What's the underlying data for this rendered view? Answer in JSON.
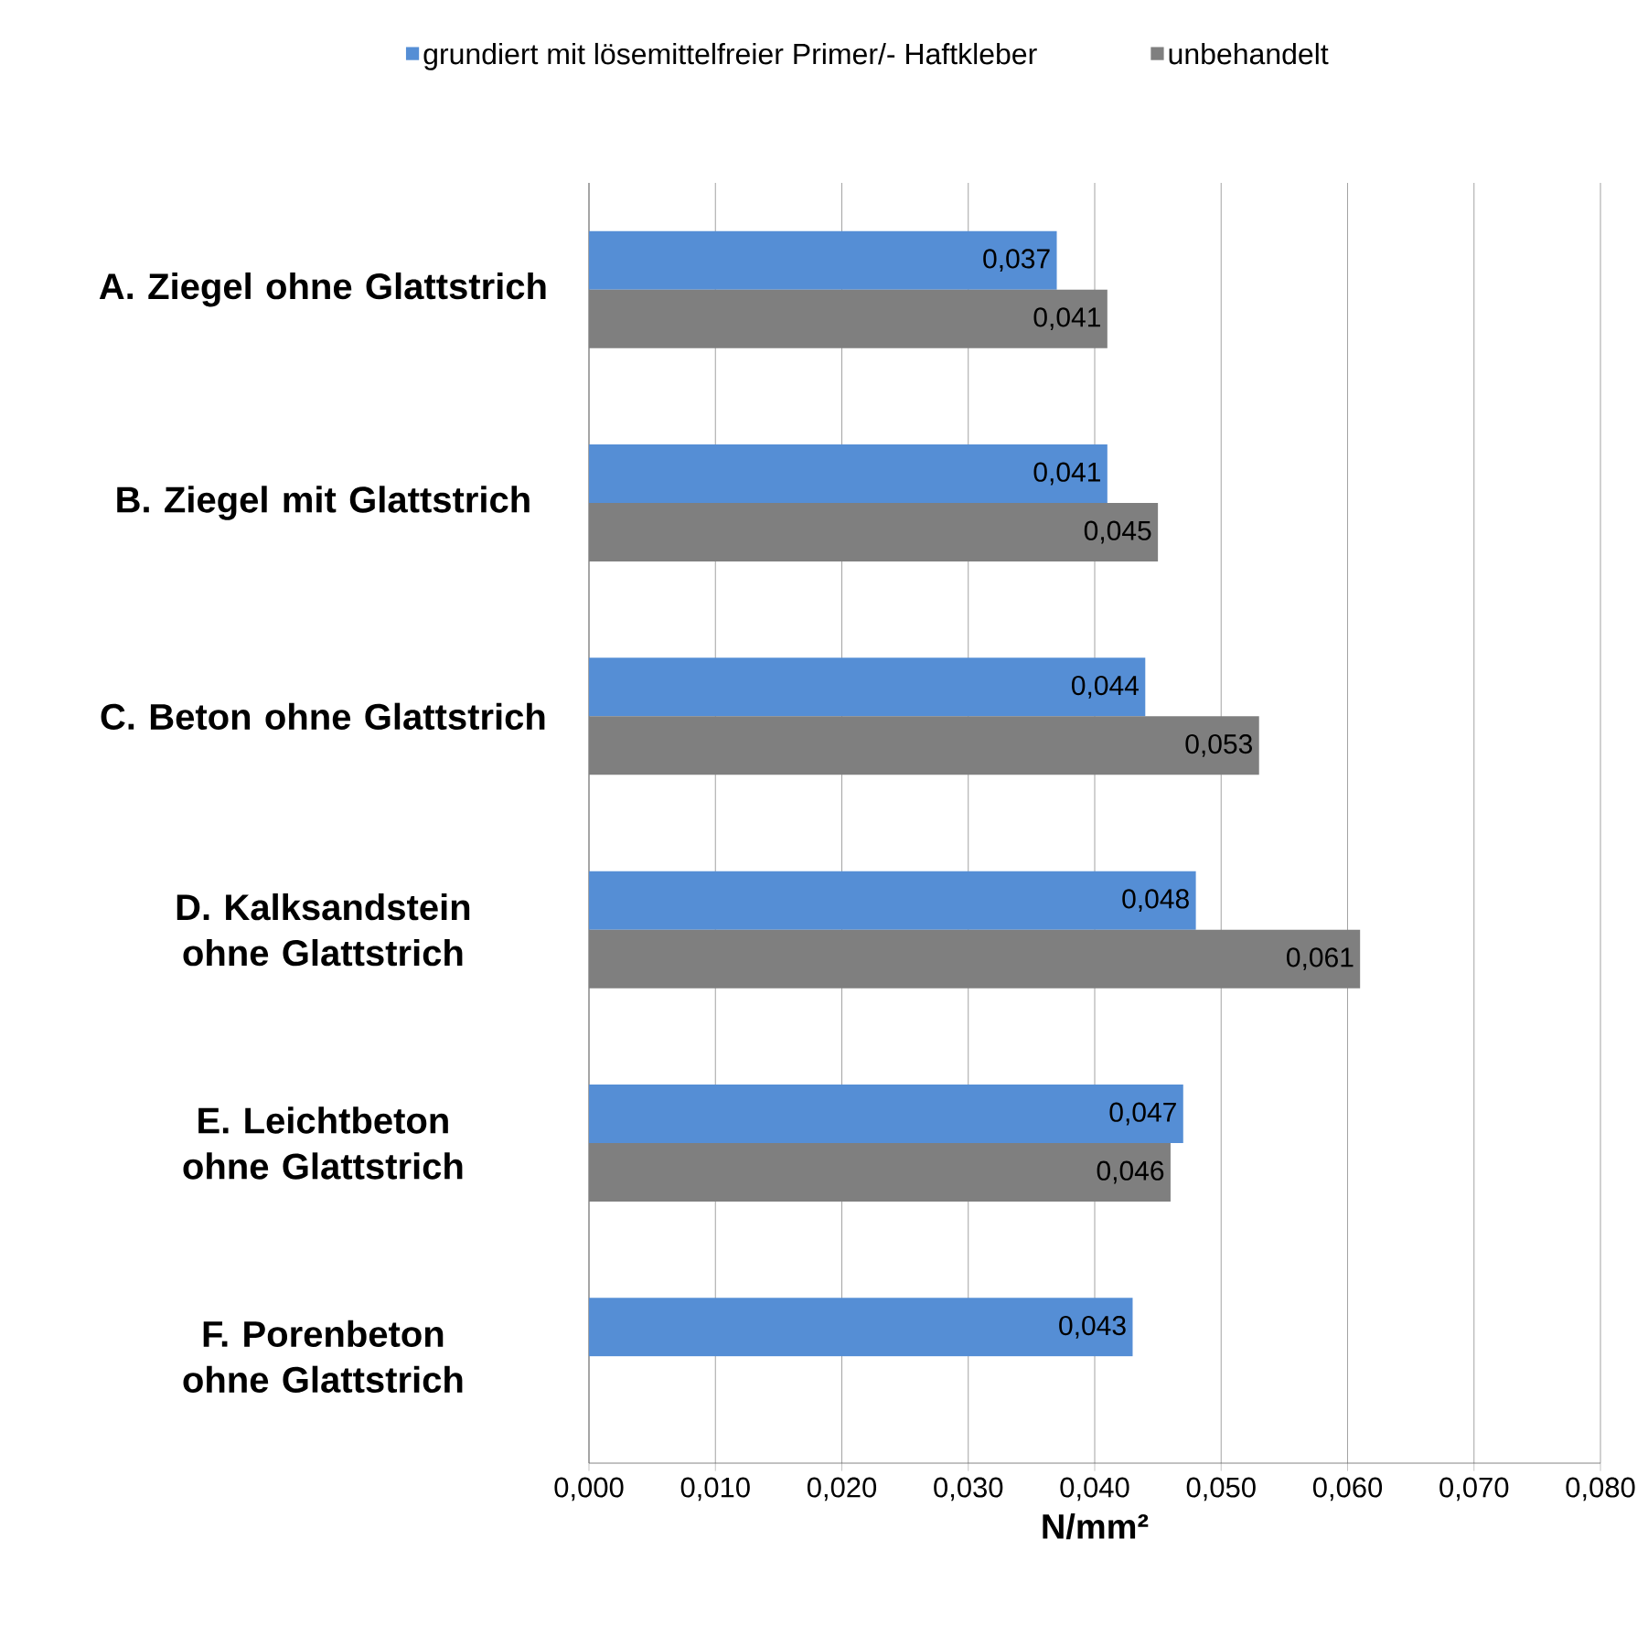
{
  "chart_data": {
    "type": "bar",
    "orientation": "horizontal",
    "categories": [
      "A. Ziegel ohne Glattstrich",
      "B. Ziegel mit Glattstrich",
      "C. Beton ohne Glattstrich",
      "D. Kalksandstein ohne Glattstrich",
      "E. Leichtbeton ohne Glattstrich",
      "F. Porenbeton ohne Glattstrich"
    ],
    "series": [
      {
        "name": "grundiert mit lösemittelfreier Primer/- Haftkleber",
        "color": "#558ed5",
        "values": [
          0.037,
          0.041,
          0.044,
          0.048,
          0.047,
          0.043
        ],
        "value_labels": [
          "0,037",
          "0,041",
          "0,044",
          "0,048",
          "0,047",
          "0,043"
        ]
      },
      {
        "name": "unbehandelt",
        "color": "#7f7f7f",
        "values": [
          0.041,
          0.045,
          0.053,
          0.061,
          0.046,
          null
        ],
        "value_labels": [
          "0,041",
          "0,045",
          "0,053",
          "0,061",
          "0,046",
          null
        ]
      }
    ],
    "xlabel": "N/mm²",
    "xlim": [
      0,
      0.08
    ],
    "xticks": [
      {
        "value": 0,
        "label": "0,000"
      },
      {
        "value": 0.01,
        "label": "0,010"
      },
      {
        "value": 0.02,
        "label": "0,020"
      },
      {
        "value": 0.03,
        "label": "0,030"
      },
      {
        "value": 0.04,
        "label": "0,040"
      },
      {
        "value": 0.05,
        "label": "0,050"
      },
      {
        "value": 0.06,
        "label": "0,060"
      },
      {
        "value": 0.07,
        "label": "0,070"
      },
      {
        "value": 0.08,
        "label": "0,080"
      }
    ],
    "grid": "x",
    "legend": "top"
  }
}
